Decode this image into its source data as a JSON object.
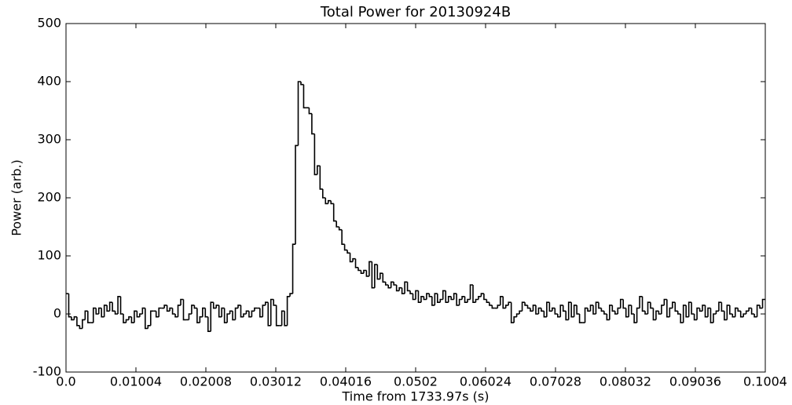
{
  "chart_data": {
    "type": "line",
    "drawstyle": "steps",
    "title": "Total Power for 20130924B",
    "x_label": "Time from 1733.97s (s)",
    "y_label": "Power (arb.)",
    "color": "#000000",
    "xlim": [
      0,
      0.1004
    ],
    "ylim": [
      -100,
      500
    ],
    "xticks": [
      {
        "value": 0,
        "label": "0.0"
      },
      0.01004,
      0.02008,
      0.03012,
      0.04016,
      0.0502,
      0.06024,
      0.07028,
      0.08032,
      0.09036,
      0.1004
    ],
    "yticks": [
      -100,
      0,
      100,
      200,
      300,
      400,
      500
    ],
    "values": [
      35,
      -5,
      -10,
      -5,
      -20,
      -25,
      -10,
      5,
      -15,
      -15,
      10,
      0,
      10,
      -5,
      15,
      5,
      20,
      5,
      0,
      30,
      0,
      -15,
      -10,
      -5,
      -15,
      5,
      -5,
      0,
      10,
      -25,
      -20,
      5,
      5,
      -5,
      10,
      10,
      15,
      5,
      10,
      0,
      -5,
      15,
      25,
      -10,
      -10,
      0,
      15,
      10,
      -15,
      -5,
      10,
      -5,
      -30,
      20,
      10,
      15,
      -5,
      10,
      -15,
      0,
      5,
      -10,
      10,
      15,
      -5,
      0,
      5,
      -5,
      5,
      10,
      10,
      -5,
      15,
      20,
      -20,
      25,
      15,
      -20,
      -20,
      5,
      -20,
      30,
      35,
      120,
      290,
      400,
      395,
      355,
      355,
      345,
      310,
      240,
      255,
      215,
      200,
      190,
      195,
      190,
      160,
      150,
      145,
      120,
      110,
      105,
      90,
      95,
      80,
      75,
      70,
      75,
      65,
      90,
      45,
      85,
      60,
      70,
      55,
      50,
      45,
      55,
      50,
      40,
      45,
      35,
      55,
      40,
      35,
      25,
      40,
      20,
      30,
      25,
      35,
      30,
      15,
      35,
      20,
      25,
      40,
      20,
      30,
      25,
      35,
      15,
      25,
      30,
      20,
      25,
      50,
      20,
      25,
      30,
      35,
      25,
      20,
      15,
      10,
      10,
      15,
      30,
      10,
      15,
      20,
      -15,
      -5,
      0,
      5,
      20,
      15,
      10,
      5,
      15,
      0,
      10,
      5,
      -5,
      20,
      5,
      10,
      0,
      -5,
      15,
      5,
      -10,
      20,
      -5,
      15,
      0,
      -15,
      -15,
      10,
      5,
      15,
      0,
      20,
      10,
      5,
      0,
      -10,
      15,
      5,
      0,
      10,
      25,
      10,
      -5,
      15,
      0,
      -15,
      10,
      30,
      5,
      0,
      20,
      10,
      -10,
      5,
      0,
      15,
      25,
      -5,
      10,
      20,
      5,
      0,
      -15,
      15,
      -5,
      20,
      0,
      -10,
      10,
      5,
      15,
      -5,
      10,
      -15,
      0,
      5,
      20,
      5,
      -10,
      15,
      0,
      -5,
      10,
      5,
      -5,
      0,
      5,
      10,
      0,
      -5,
      15,
      10,
      25
    ]
  }
}
